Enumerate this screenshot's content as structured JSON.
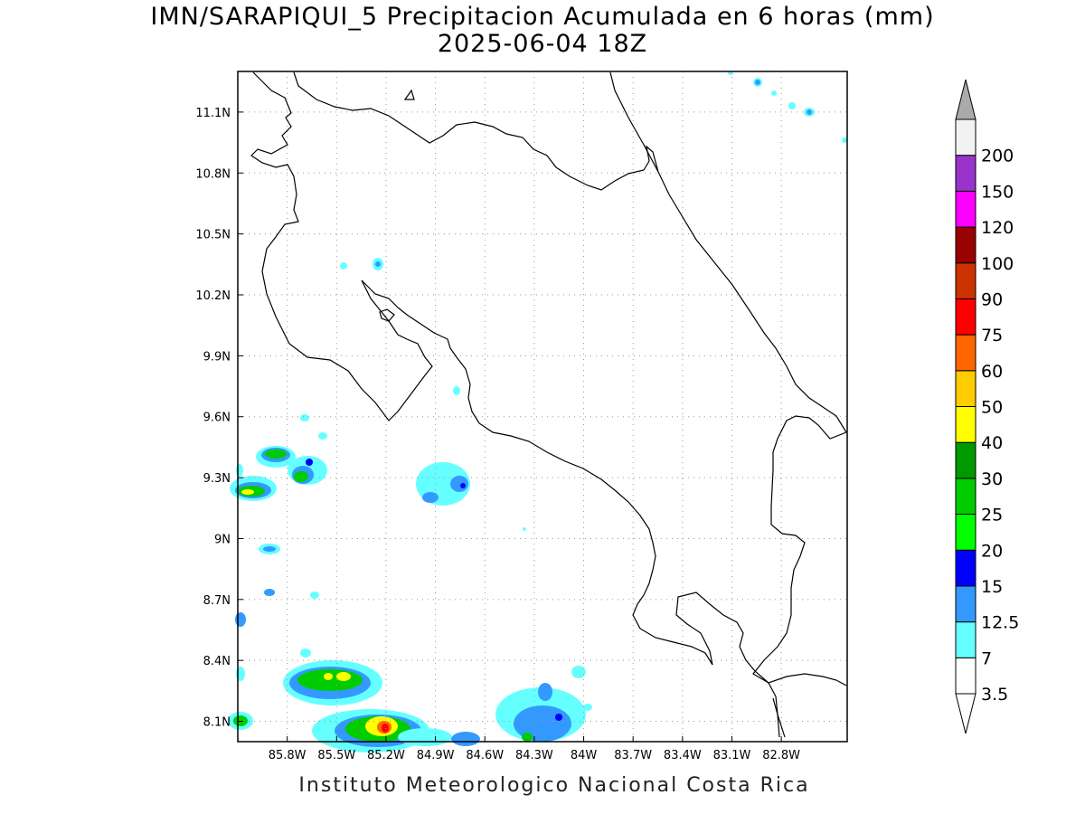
{
  "title": {
    "line1": "IMN/SARAPIQUI_5 Precipitacion Acumulada en 6 horas (mm)",
    "line2": "2025-06-04 18Z"
  },
  "footer": "Instituto Meteorologico Nacional Costa Rica",
  "map": {
    "lon_range": [
      -86.1,
      -82.4
    ],
    "lat_range": [
      8.0,
      11.3
    ],
    "lon_ticks": [
      {
        "value": -85.8,
        "label": "85.8W"
      },
      {
        "value": -85.5,
        "label": "85.5W"
      },
      {
        "value": -85.2,
        "label": "85.2W"
      },
      {
        "value": -84.9,
        "label": "84.9W"
      },
      {
        "value": -84.6,
        "label": "84.6W"
      },
      {
        "value": -84.3,
        "label": "84.3W"
      },
      {
        "value": -84.0,
        "label": "84W"
      },
      {
        "value": -83.7,
        "label": "83.7W"
      },
      {
        "value": -83.4,
        "label": "83.4W"
      },
      {
        "value": -83.1,
        "label": "83.1W"
      },
      {
        "value": -82.8,
        "label": "82.8W"
      }
    ],
    "lat_ticks": [
      {
        "value": 11.1,
        "label": "11.1N"
      },
      {
        "value": 10.8,
        "label": "10.8N"
      },
      {
        "value": 10.5,
        "label": "10.5N"
      },
      {
        "value": 10.2,
        "label": "10.2N"
      },
      {
        "value": 9.9,
        "label": "9.9N"
      },
      {
        "value": 9.6,
        "label": "9.6N"
      },
      {
        "value": 9.3,
        "label": "9.3N"
      },
      {
        "value": 9.0,
        "label": "9N"
      },
      {
        "value": 8.7,
        "label": "8.7N"
      },
      {
        "value": 8.4,
        "label": "8.4N"
      },
      {
        "value": 8.1,
        "label": "8.1N"
      }
    ],
    "grid": true
  },
  "colorbar": {
    "unit": "mm",
    "levels": [
      {
        "label": "3.5",
        "color": "#ffffff"
      },
      {
        "label": "7",
        "color": "#66ffff"
      },
      {
        "label": "12.5",
        "color": "#3399ff"
      },
      {
        "label": "15",
        "color": "#0000ff"
      },
      {
        "label": "20",
        "color": "#00ff00"
      },
      {
        "label": "25",
        "color": "#00cc00"
      },
      {
        "label": "30",
        "color": "#009900"
      },
      {
        "label": "40",
        "color": "#ffff00"
      },
      {
        "label": "50",
        "color": "#ffcc00"
      },
      {
        "label": "60",
        "color": "#ff6600"
      },
      {
        "label": "75",
        "color": "#ff0000"
      },
      {
        "label": "90",
        "color": "#cc3300"
      },
      {
        "label": "100",
        "color": "#990000"
      },
      {
        "label": "120",
        "color": "#ff00ff"
      },
      {
        "label": "150",
        "color": "#9933cc"
      },
      {
        "label": "200",
        "color": "#f2f2f2"
      }
    ],
    "top_arrow_color": "#aaaaaa",
    "bottom_arrow_color": "#ffffff"
  }
}
